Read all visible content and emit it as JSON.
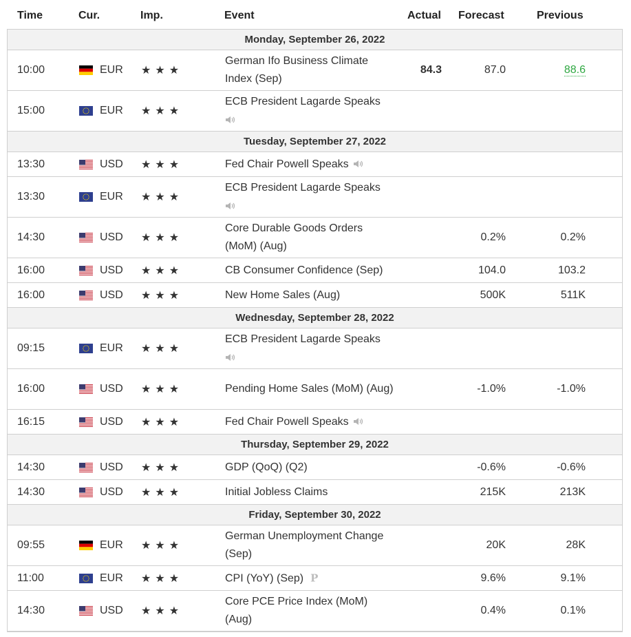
{
  "headers": {
    "time": "Time",
    "cur": "Cur.",
    "imp": "Imp.",
    "event": "Event",
    "actual": "Actual",
    "forecast": "Forecast",
    "previous": "Previous"
  },
  "colors": {
    "actual_red": "#e0161b",
    "previous_green": "#2fa842",
    "star_gray": "#c4c4c4",
    "day_bg": "#f2f2f2"
  },
  "stars": "★★★",
  "days": [
    {
      "label": "Monday, September 26, 2022",
      "rows": [
        {
          "time": "10:00",
          "flag": "de",
          "cur": "EUR",
          "event": "German Ifo Business Climate Index (Sep)",
          "actual": "84.3",
          "forecast": "87.0",
          "previous": "88.6",
          "prev_style": "green",
          "h": 58
        },
        {
          "time": "15:00",
          "flag": "eu",
          "cur": "EUR",
          "event": "ECB President Lagarde Speaks",
          "speech": "block",
          "actual": "",
          "forecast": "",
          "previous": "",
          "h": 58
        }
      ]
    },
    {
      "label": "Tuesday, September 27, 2022",
      "rows": [
        {
          "time": "13:30",
          "flag": "us",
          "cur": "USD",
          "event": "Fed Chair Powell Speaks",
          "speech": "inline",
          "actual": "",
          "forecast": "",
          "previous": "",
          "h": 35
        },
        {
          "time": "13:30",
          "flag": "eu",
          "cur": "EUR",
          "event": "ECB President Lagarde Speaks",
          "speech": "block",
          "actual": "",
          "forecast": "",
          "previous": "",
          "h": 58
        },
        {
          "time": "14:30",
          "flag": "us",
          "cur": "USD",
          "event": "Core Durable Goods Orders (MoM) (Aug)",
          "actual": "",
          "forecast": "0.2%",
          "previous": "0.2%",
          "h": 58
        },
        {
          "time": "16:00",
          "flag": "us",
          "cur": "USD",
          "event": "CB Consumer Confidence (Sep)",
          "actual": "",
          "forecast": "104.0",
          "previous": "103.2",
          "h": 35
        },
        {
          "time": "16:00",
          "flag": "us",
          "cur": "USD",
          "event": "New Home Sales (Aug)",
          "actual": "",
          "forecast": "500K",
          "previous": "511K",
          "h": 35
        }
      ]
    },
    {
      "label": "Wednesday, September 28, 2022",
      "rows": [
        {
          "time": "09:15",
          "flag": "eu",
          "cur": "EUR",
          "event": "ECB President Lagarde Speaks",
          "speech": "block",
          "actual": "",
          "forecast": "",
          "previous": "",
          "h": 58
        },
        {
          "time": "16:00",
          "flag": "us",
          "cur": "USD",
          "event": "Pending Home Sales (MoM) (Aug)",
          "actual": "",
          "forecast": "-1.0%",
          "previous": "-1.0%",
          "h": 58
        },
        {
          "time": "16:15",
          "flag": "us",
          "cur": "USD",
          "event": "Fed Chair Powell Speaks",
          "speech": "inline",
          "actual": "",
          "forecast": "",
          "previous": "",
          "h": 35
        }
      ]
    },
    {
      "label": "Thursday, September 29, 2022",
      "rows": [
        {
          "time": "14:30",
          "flag": "us",
          "cur": "USD",
          "event": "GDP (QoQ) (Q2)",
          "actual": "",
          "forecast": "-0.6%",
          "previous": "-0.6%",
          "h": 35
        },
        {
          "time": "14:30",
          "flag": "us",
          "cur": "USD",
          "event": "Initial Jobless Claims",
          "actual": "",
          "forecast": "215K",
          "previous": "213K",
          "h": 35
        }
      ]
    },
    {
      "label": "Friday, September 30, 2022",
      "rows": [
        {
          "time": "09:55",
          "flag": "de",
          "cur": "EUR",
          "event": "German Unemployment Change (Sep)",
          "actual": "",
          "forecast": "20K",
          "previous": "28K",
          "h": 58
        },
        {
          "time": "11:00",
          "flag": "eu",
          "cur": "EUR",
          "event": "CPI (YoY) (Sep)",
          "prelim": "P",
          "actual": "",
          "forecast": "9.6%",
          "previous": "9.1%",
          "h": 35
        },
        {
          "time": "14:30",
          "flag": "us",
          "cur": "USD",
          "event": "Core PCE Price Index (MoM) (Aug)",
          "actual": "",
          "forecast": "0.4%",
          "previous": "0.1%",
          "h": 58
        }
      ]
    }
  ]
}
